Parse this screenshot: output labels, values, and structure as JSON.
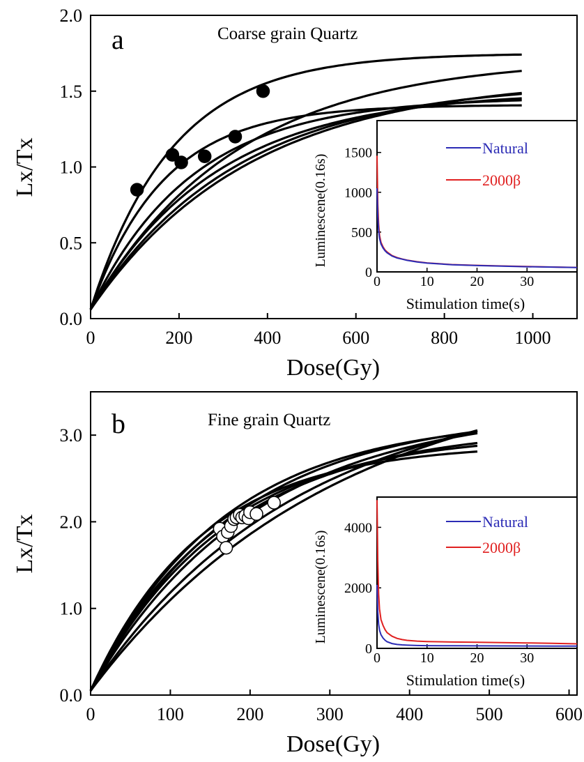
{
  "chart_data": [
    {
      "type": "line",
      "panel_label": "a",
      "title": "Coarse grain Quartz",
      "xlabel": "Dose(Gy)",
      "ylabel": "Lx/Tx",
      "xlim": [
        0,
        1100
      ],
      "ylim": [
        0,
        2.0
      ],
      "xticks": [
        0,
        200,
        400,
        600,
        800,
        1000
      ],
      "yticks": [
        0.0,
        0.5,
        1.0,
        1.5,
        2.0
      ],
      "xtick_labels": [
        "0",
        "200",
        "400",
        "600",
        "800",
        "1000"
      ],
      "ytick_labels": [
        "0.0",
        "0.5",
        "1.0",
        "1.5",
        "2.0"
      ],
      "line_color": "#000000",
      "curve_x_end": 975,
      "curves": [
        {
          "intercept": 0.06,
          "amplitude": 1.69,
          "d0": 185
        },
        {
          "intercept": 0.06,
          "amplitude": 1.66,
          "d0": 330
        },
        {
          "intercept": 0.06,
          "amplitude": 1.53,
          "d0": 360
        },
        {
          "intercept": 0.06,
          "amplitude": 1.5,
          "d0": 330
        },
        {
          "intercept": 0.06,
          "amplitude": 1.44,
          "d0": 285
        },
        {
          "intercept": 0.06,
          "amplitude": 1.4,
          "d0": 230
        },
        {
          "intercept": 0.06,
          "amplitude": 1.35,
          "d0": 165
        }
      ],
      "points": {
        "style": "filled",
        "fill": "#000000",
        "x": [
          105,
          185,
          205,
          258,
          327,
          390
        ],
        "y": [
          0.85,
          1.08,
          1.03,
          1.07,
          1.2,
          1.5
        ]
      },
      "inset": {
        "type": "line",
        "xlabel": "Stimulation time(s)",
        "ylabel": "Luminescene(0.16s)",
        "xlim": [
          0,
          40
        ],
        "ylim": [
          0,
          1900
        ],
        "xticks": [
          0,
          10,
          20,
          30
        ],
        "yticks": [
          0,
          500,
          1000,
          1500
        ],
        "xtick_labels": [
          "0",
          "10",
          "20",
          "30"
        ],
        "ytick_labels": [
          "0",
          "500",
          "1000",
          "1500"
        ],
        "legend_position": "top-right",
        "series": [
          {
            "name": "Natural",
            "color": "#2b2bb5",
            "x": [
              0,
              0.16,
              0.32,
              0.5,
              0.8,
              1.2,
              1.6,
              2,
              3,
              4,
              5,
              6,
              8,
              10,
              15,
              20,
              25,
              30,
              35,
              40
            ],
            "y": [
              1050,
              700,
              520,
              420,
              350,
              300,
              265,
              240,
              200,
              175,
              160,
              145,
              125,
              110,
              90,
              80,
              72,
              65,
              60,
              55
            ]
          },
          {
            "name": "2000β",
            "color": "#e02020",
            "x": [
              0,
              0.16,
              0.32,
              0.5,
              0.8,
              1.2,
              1.6,
              2,
              3,
              4,
              5,
              6,
              8,
              10,
              15,
              20,
              25,
              30,
              35,
              40
            ],
            "y": [
              1460,
              850,
              600,
              460,
              370,
              315,
              275,
              250,
              205,
              180,
              162,
              148,
              128,
              113,
              92,
              82,
              74,
              67,
              61,
              56
            ]
          }
        ]
      }
    },
    {
      "type": "line",
      "panel_label": "b",
      "title": "Fine grain Quartz",
      "xlabel": "Dose(Gy)",
      "ylabel": "Lx/Tx",
      "xlim": [
        0,
        610
      ],
      "ylim": [
        0,
        3.5
      ],
      "xticks": [
        0,
        100,
        200,
        300,
        400,
        500,
        600
      ],
      "yticks": [
        0.0,
        1.0,
        2.0,
        3.0
      ],
      "xtick_labels": [
        "0",
        "100",
        "200",
        "300",
        "400",
        "500",
        "600"
      ],
      "ytick_labels": [
        "0.0",
        "1.0",
        "2.0",
        "3.0"
      ],
      "line_color": "#000000",
      "curve_x_end": 485,
      "curves": [
        {
          "intercept": 0.05,
          "amplitude": 3.21,
          "d0": 180
        },
        {
          "intercept": 0.05,
          "amplitude": 3.15,
          "d0": 165
        },
        {
          "intercept": 0.05,
          "amplitude": 3.28,
          "d0": 205
        },
        {
          "intercept": 0.05,
          "amplitude": 3.55,
          "d0": 260
        },
        {
          "intercept": 0.05,
          "amplitude": 2.85,
          "d0": 140
        },
        {
          "intercept": 0.05,
          "amplitude": 2.97,
          "d0": 160
        },
        {
          "intercept": 0.05,
          "amplitude": 3.8,
          "d0": 310
        },
        {
          "intercept": 0.05,
          "amplitude": 3.05,
          "d0": 175
        }
      ],
      "points": {
        "style": "open",
        "fill": "#ffffff",
        "x": [
          162,
          166,
          170,
          172,
          176,
          180,
          183,
          187,
          190,
          194,
          198,
          200,
          208,
          230
        ],
        "y": [
          1.92,
          1.83,
          1.7,
          1.88,
          1.95,
          2.03,
          2.05,
          2.08,
          2.05,
          2.07,
          2.04,
          2.11,
          2.09,
          2.22
        ]
      },
      "inset": {
        "type": "line",
        "xlabel": "Stimulation time(s)",
        "ylabel": "Luminescene(0.16s)",
        "xlim": [
          0,
          40
        ],
        "ylim": [
          0,
          5000
        ],
        "xticks": [
          0,
          10,
          20,
          30
        ],
        "yticks": [
          0,
          2000,
          4000
        ],
        "xtick_labels": [
          "0",
          "10",
          "20",
          "30"
        ],
        "ytick_labels": [
          "0",
          "2000",
          "4000"
        ],
        "legend_position": "top-right",
        "series": [
          {
            "name": "Natural",
            "color": "#2b2bb5",
            "x": [
              0,
              0.16,
              0.32,
              0.5,
              0.8,
              1.2,
              1.6,
              2,
              3,
              4,
              5,
              6,
              8,
              10,
              15,
              20,
              25,
              30,
              35,
              40
            ],
            "y": [
              2100,
              1200,
              800,
              600,
              450,
              340,
              270,
              220,
              160,
              130,
              115,
              105,
              95,
              90,
              85,
              82,
              80,
              78,
              76,
              75
            ]
          },
          {
            "name": "2000β",
            "color": "#e02020",
            "x": [
              0,
              0.16,
              0.32,
              0.5,
              0.8,
              1.2,
              1.6,
              2,
              3,
              4,
              5,
              6,
              8,
              10,
              15,
              20,
              25,
              30,
              35,
              40
            ],
            "y": [
              4900,
              2900,
              1800,
              1300,
              950,
              760,
              620,
              520,
              400,
              330,
              290,
              265,
              240,
              225,
              210,
              200,
              190,
              180,
              165,
              150
            ]
          }
        ]
      }
    }
  ]
}
